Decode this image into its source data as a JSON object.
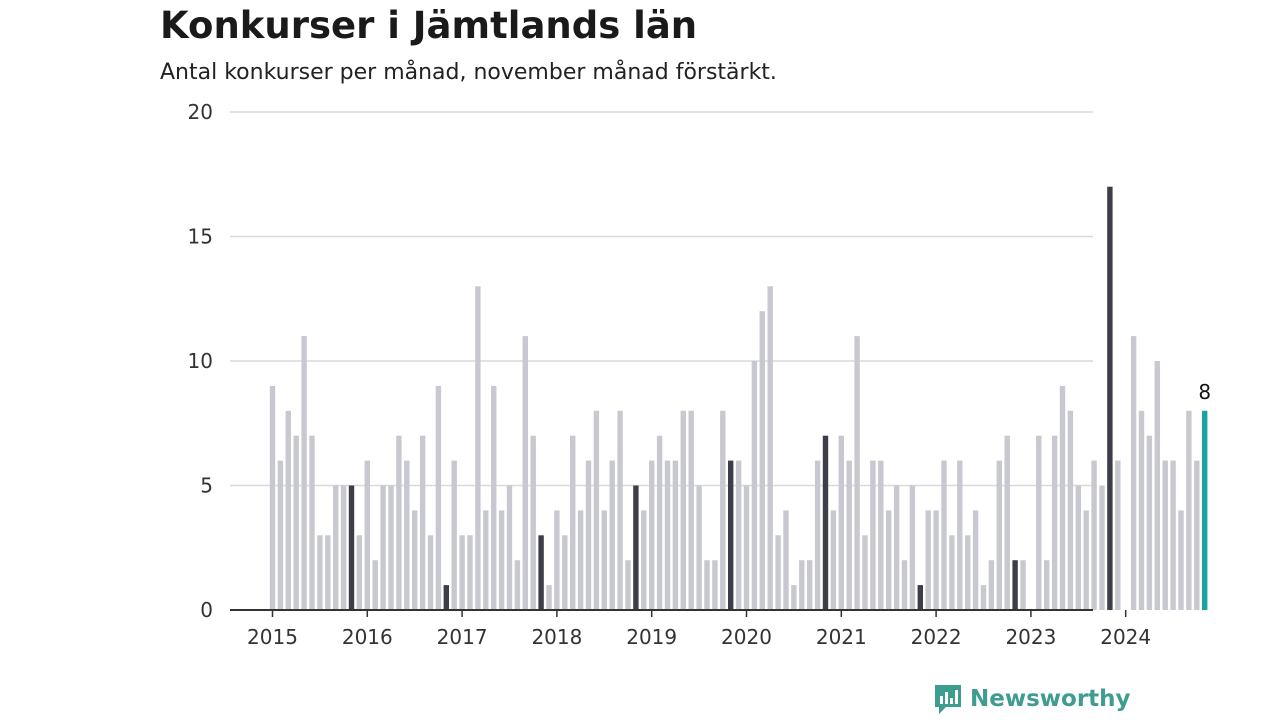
{
  "title": "Konkurser i Jämtlands län",
  "subtitle": "Antal konkurser per månad, november månad förstärkt.",
  "brand": "Newsworthy",
  "colors": {
    "bar": "#c8c8d0",
    "highlight": "#3e3e4a",
    "latest": "#1aa39a",
    "grid": "#d9d9d9",
    "axis": "#333333",
    "brand": "#3e9c91"
  },
  "chart_data": {
    "type": "bar",
    "start": "2015-01",
    "highlight_month": 11,
    "ylim": [
      0,
      20
    ],
    "yticks": [
      0,
      5,
      10,
      15,
      20
    ],
    "xticks": [
      "2015",
      "2016",
      "2017",
      "2018",
      "2019",
      "2020",
      "2021",
      "2022",
      "2023",
      "2024"
    ],
    "latest_label": "8",
    "values": [
      9,
      6,
      8,
      7,
      11,
      7,
      3,
      3,
      5,
      5,
      5,
      3,
      6,
      2,
      5,
      5,
      7,
      6,
      4,
      7,
      3,
      9,
      1,
      6,
      3,
      3,
      13,
      4,
      9,
      4,
      5,
      2,
      11,
      7,
      3,
      1,
      4,
      3,
      7,
      4,
      6,
      8,
      4,
      6,
      8,
      2,
      5,
      4,
      6,
      7,
      6,
      6,
      8,
      8,
      5,
      2,
      2,
      8,
      6,
      6,
      5,
      10,
      12,
      13,
      3,
      4,
      1,
      2,
      2,
      6,
      7,
      4,
      7,
      6,
      11,
      3,
      6,
      6,
      4,
      5,
      2,
      5,
      1,
      4,
      4,
      6,
      3,
      6,
      3,
      4,
      1,
      2,
      6,
      7,
      2,
      2,
      0,
      7,
      2,
      7,
      9,
      8,
      5,
      4,
      6,
      5,
      17,
      6,
      0,
      11,
      8,
      7,
      10,
      6,
      6,
      4,
      8,
      6,
      8
    ]
  }
}
